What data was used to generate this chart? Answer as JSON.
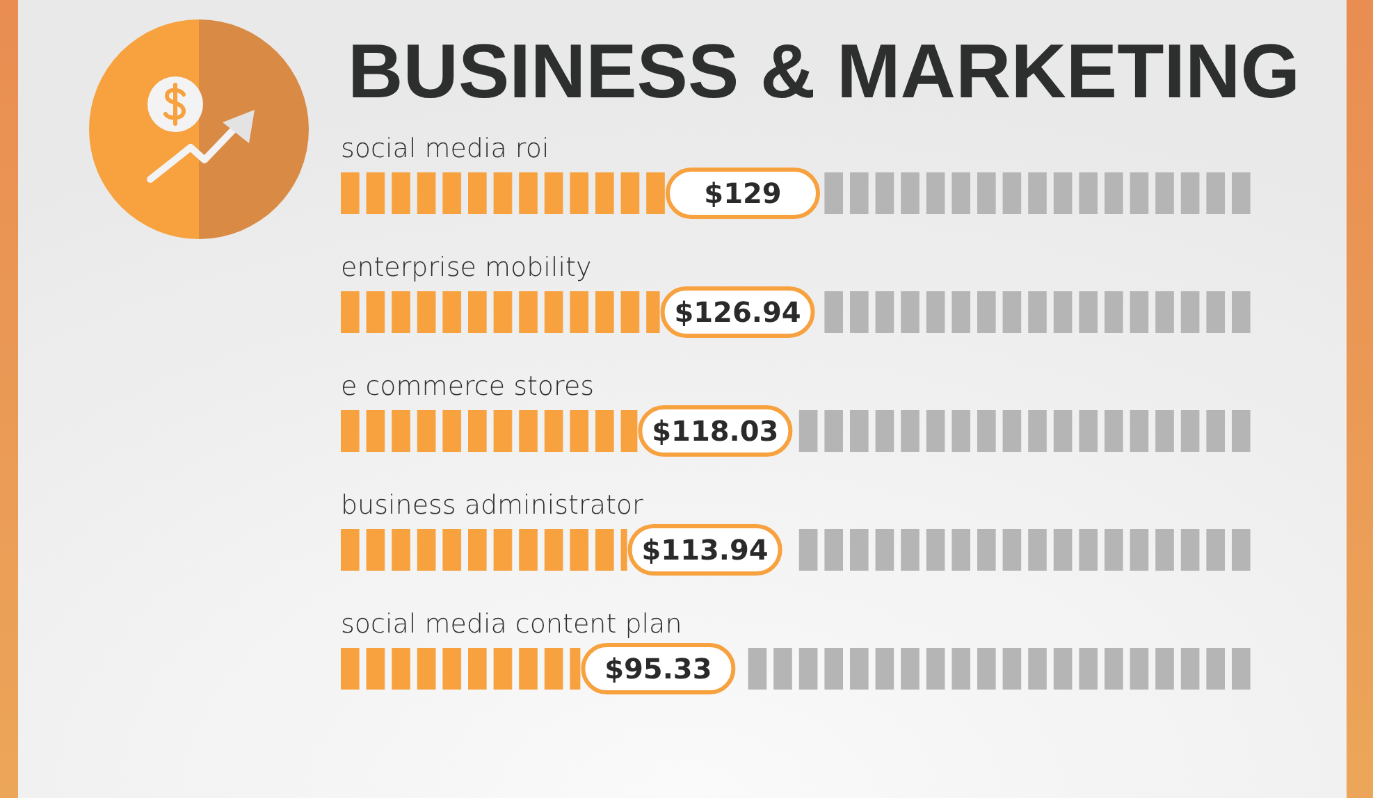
{
  "chart_data": {
    "type": "bar",
    "orientation": "horizontal",
    "title": "BUSINESS & MARKETING",
    "categories": [
      "social media roi",
      "enterprise mobility",
      "e commerce stores",
      "business administrator",
      "social media content plan"
    ],
    "values": [
      129,
      126.94,
      118.03,
      113.94,
      95.33
    ],
    "color": "#f7a13f",
    "value_labels": [
      "$129",
      "$126.94",
      "$118.03",
      "$113.94",
      "$95.33"
    ]
  }
}
